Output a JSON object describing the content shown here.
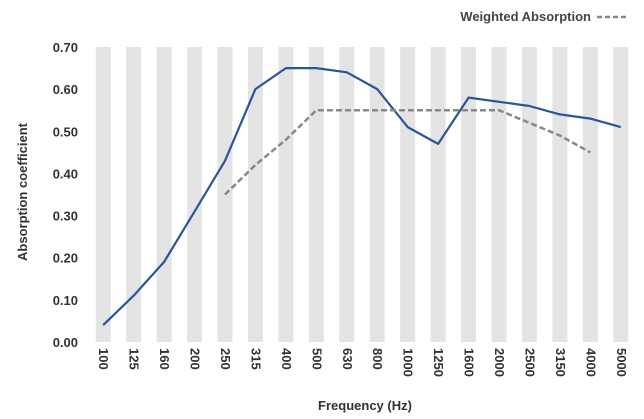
{
  "chart_data": {
    "type": "line",
    "title": "",
    "xlabel": "Frequency (Hz)",
    "ylabel": "Absorption coefficient",
    "categories": [
      "100",
      "125",
      "160",
      "200",
      "250",
      "315",
      "400",
      "500",
      "630",
      "800",
      "1000",
      "1250",
      "1600",
      "2000",
      "2500",
      "3150",
      "4000",
      "5000"
    ],
    "ylim": [
      0,
      0.7
    ],
    "yticks": [
      "0.00",
      "0.10",
      "0.20",
      "0.30",
      "0.40",
      "0.50",
      "0.60",
      "0.70"
    ],
    "grid": "alternating vertical bands",
    "legend_position": "top-right",
    "series": [
      {
        "name": "",
        "color": "#2a5599",
        "style": "solid",
        "values": [
          0.04,
          0.11,
          0.19,
          0.31,
          0.43,
          0.6,
          0.65,
          0.65,
          0.64,
          0.6,
          0.51,
          0.47,
          0.58,
          0.57,
          0.56,
          0.54,
          0.53,
          0.51
        ]
      },
      {
        "name": "Weighted Absorption",
        "color": "#888888",
        "style": "dashed",
        "values": [
          null,
          null,
          null,
          null,
          0.35,
          0.42,
          0.48,
          0.55,
          0.55,
          0.55,
          0.55,
          0.55,
          0.55,
          0.55,
          0.52,
          0.49,
          0.45,
          null
        ]
      }
    ]
  }
}
